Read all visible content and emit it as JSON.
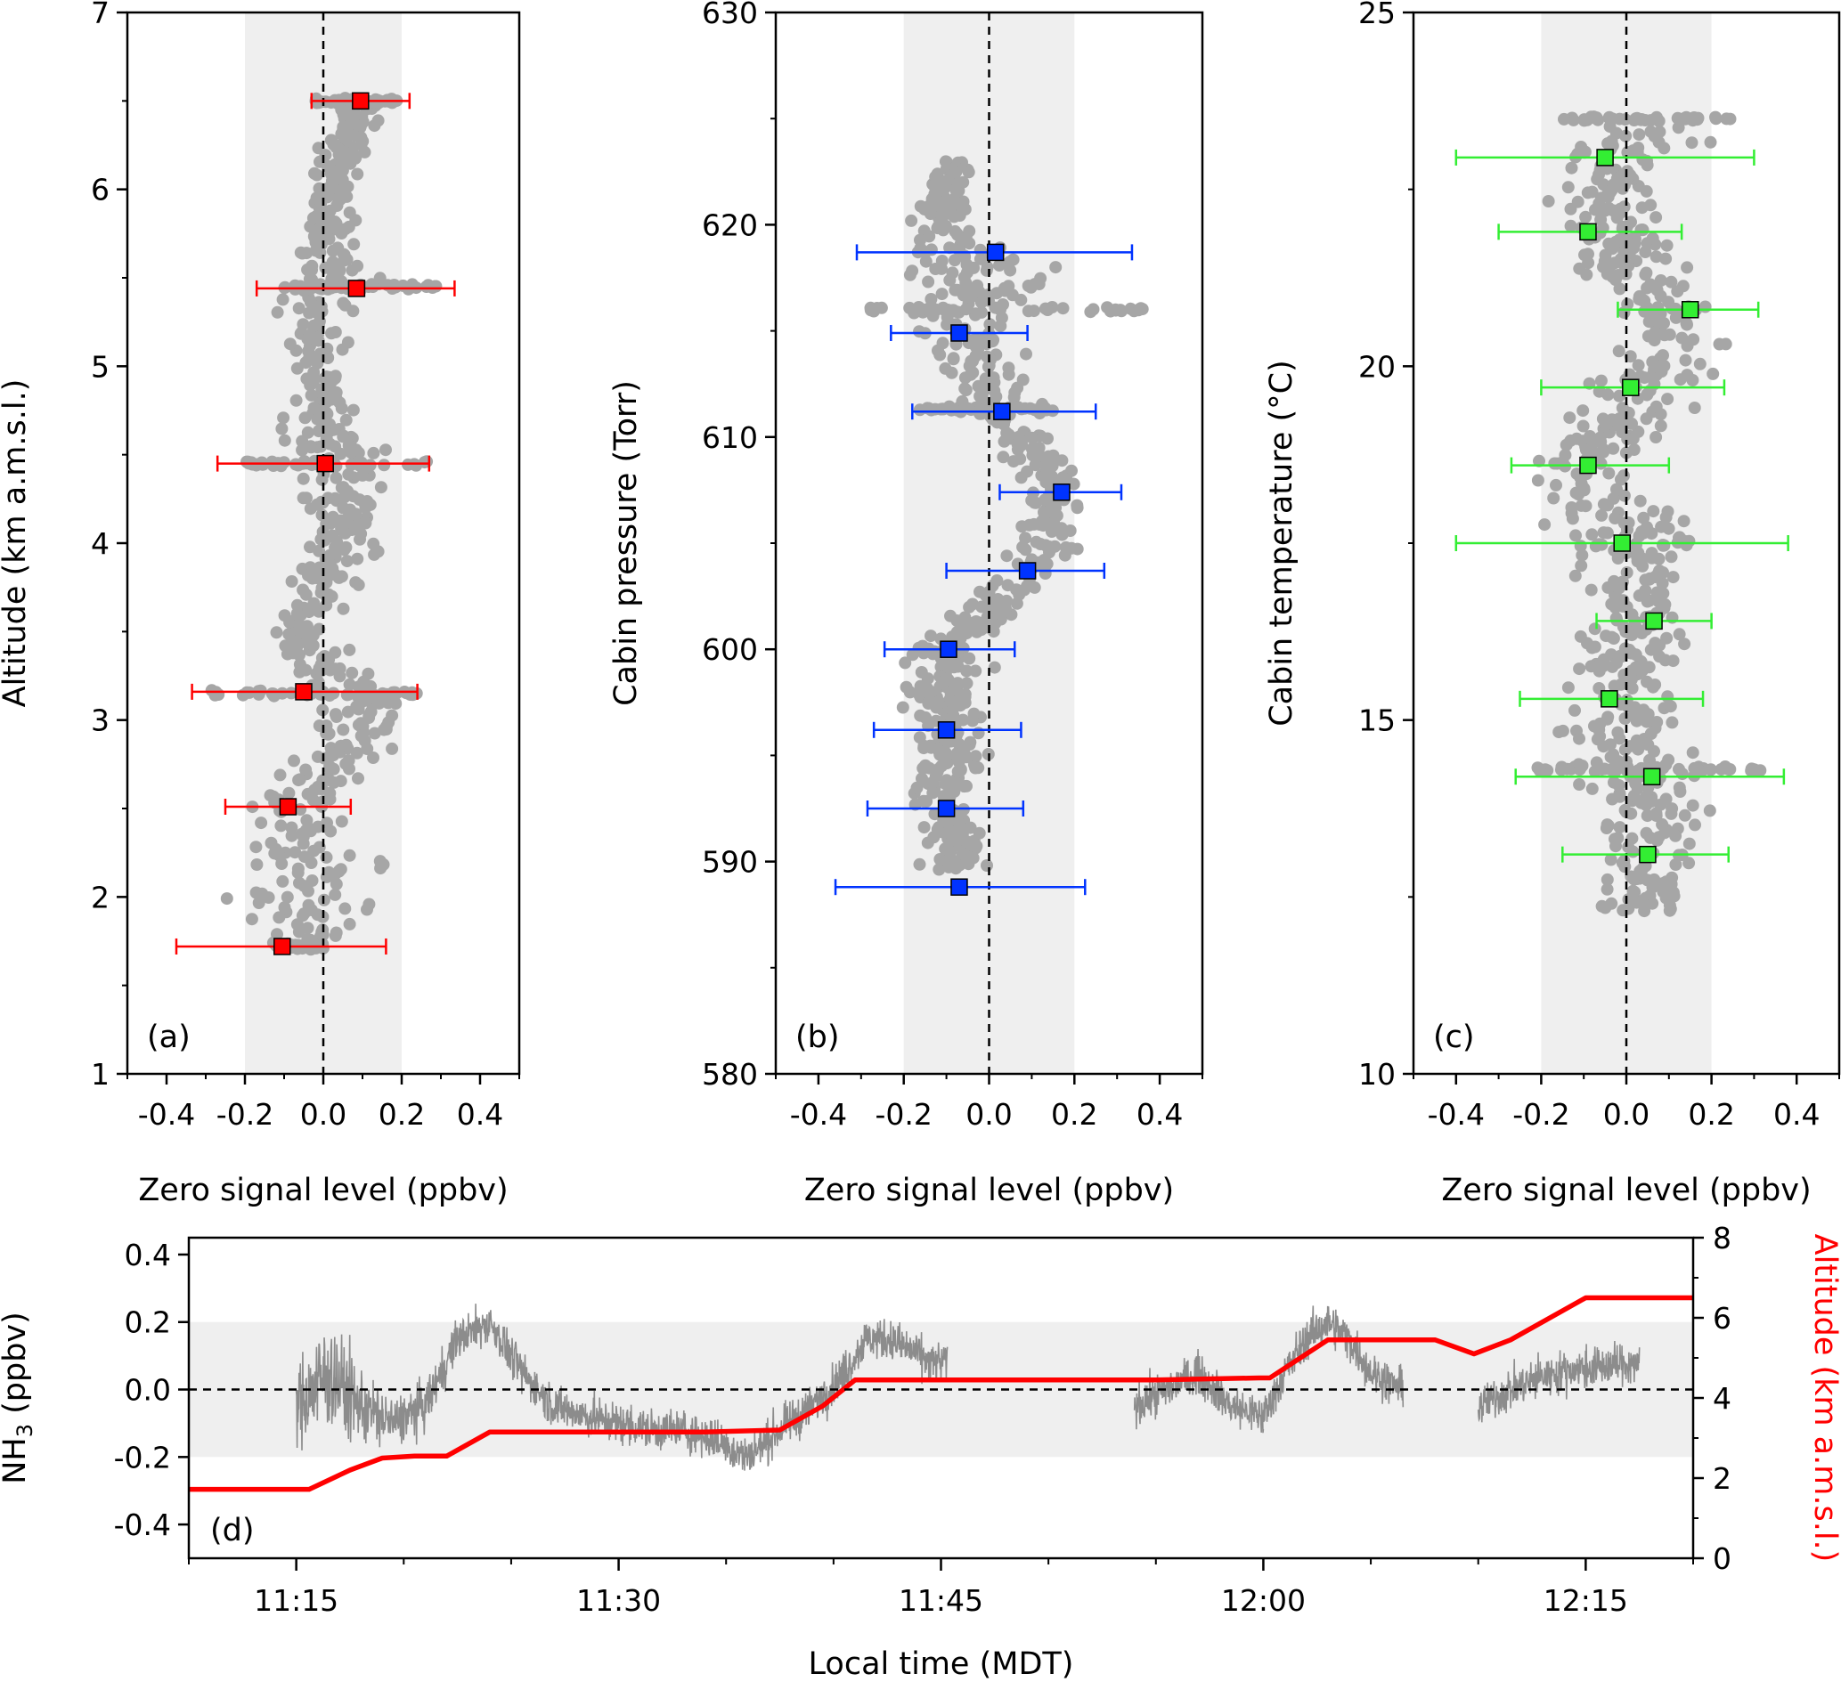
{
  "chart_data": [
    {
      "type": "scatter",
      "panel_label": "(a)",
      "xlabel": "Zero signal level (ppbv)",
      "ylabel": "Altitude (km a.m.s.l.)",
      "xlim": [
        -0.5,
        0.5
      ],
      "ylim": [
        1,
        7
      ],
      "xticks": [
        -0.4,
        -0.2,
        0.0,
        0.2,
        0.4
      ],
      "xtick_labels": [
        "-0.4",
        "-0.2",
        "0.0",
        "0.2",
        "0.4"
      ],
      "yticks": [
        1,
        2,
        3,
        4,
        5,
        6,
        7
      ],
      "ytick_labels": [
        "1",
        "2",
        "3",
        "4",
        "5",
        "6",
        "7"
      ],
      "shaded_band": [
        -0.2,
        0.2
      ],
      "zero_line": 0,
      "marker_color": "#ff0000",
      "scatter_color": "#a6a6a6",
      "scatter_trend": [
        {
          "y": 1.72,
          "x": -0.06,
          "spread": 0.05
        },
        {
          "y": 2.0,
          "x": 0.0,
          "spread": 0.2
        },
        {
          "y": 2.5,
          "x": -0.1,
          "spread": 0.1
        },
        {
          "y": 3.0,
          "x": 0.12,
          "spread": 0.09
        },
        {
          "y": 3.5,
          "x": -0.07,
          "spread": 0.06
        },
        {
          "y": 4.0,
          "x": 0.05,
          "spread": 0.08
        },
        {
          "y": 4.45,
          "x": 0.04,
          "spread": 0.12
        },
        {
          "y": 5.0,
          "x": -0.03,
          "spread": 0.06
        },
        {
          "y": 5.45,
          "x": 0.02,
          "spread": 0.1
        },
        {
          "y": 6.0,
          "x": 0.03,
          "spread": 0.05
        },
        {
          "y": 6.5,
          "x": 0.09,
          "spread": 0.05
        }
      ],
      "bands": [
        {
          "y": 1.72,
          "xmin": -0.12,
          "xmax": 0.0
        },
        {
          "y": 3.15,
          "xmin": -0.3,
          "xmax": 0.25
        },
        {
          "y": 4.45,
          "xmin": -0.22,
          "xmax": 0.27
        },
        {
          "y": 5.45,
          "xmin": -0.1,
          "xmax": 0.3
        },
        {
          "y": 6.5,
          "xmin": -0.02,
          "xmax": 0.2
        }
      ],
      "means": [
        {
          "y": 6.5,
          "x": 0.095,
          "err_lo": -0.03,
          "err_hi": 0.22
        },
        {
          "y": 5.44,
          "x": 0.085,
          "err_lo": -0.17,
          "err_hi": 0.335
        },
        {
          "y": 4.45,
          "x": 0.005,
          "err_lo": -0.27,
          "err_hi": 0.27
        },
        {
          "y": 3.16,
          "x": -0.05,
          "err_lo": -0.335,
          "err_hi": 0.24
        },
        {
          "y": 2.51,
          "x": -0.09,
          "err_lo": -0.25,
          "err_hi": 0.07
        },
        {
          "y": 1.72,
          "x": -0.105,
          "err_lo": -0.375,
          "err_hi": 0.16
        }
      ]
    },
    {
      "type": "scatter",
      "panel_label": "(b)",
      "xlabel": "Zero signal level (ppbv)",
      "ylabel": "Cabin pressure (Torr)",
      "xlim": [
        -0.5,
        0.5
      ],
      "ylim": [
        580,
        630
      ],
      "xticks": [
        -0.4,
        -0.2,
        0.0,
        0.2,
        0.4
      ],
      "xtick_labels": [
        "-0.4",
        "-0.2",
        "0.0",
        "0.2",
        "0.4"
      ],
      "yticks": [
        580,
        590,
        600,
        610,
        620,
        630
      ],
      "ytick_labels": [
        "580",
        "590",
        "600",
        "610",
        "620",
        "630"
      ],
      "shaded_band": [
        -0.2,
        0.2
      ],
      "zero_line": 0,
      "marker_color": "#0033ff",
      "scatter_color": "#a6a6a6",
      "scatter_trend": [
        {
          "y": 589.5,
          "x": -0.08,
          "spread": 0.06
        },
        {
          "y": 592.5,
          "x": -0.1,
          "spread": 0.07
        },
        {
          "y": 596.0,
          "x": -0.1,
          "spread": 0.07
        },
        {
          "y": 600.0,
          "x": -0.1,
          "spread": 0.07
        },
        {
          "y": 603.5,
          "x": 0.1,
          "spread": 0.08
        },
        {
          "y": 607.5,
          "x": 0.17,
          "spread": 0.06
        },
        {
          "y": 611.0,
          "x": 0.03,
          "spread": 0.08
        },
        {
          "y": 615.0,
          "x": -0.06,
          "spread": 0.08
        },
        {
          "y": 617.5,
          "x": 0.0,
          "spread": 0.15
        },
        {
          "y": 620.0,
          "x": -0.12,
          "spread": 0.06
        },
        {
          "y": 623.0,
          "x": -0.08,
          "spread": 0.04
        }
      ],
      "bands": [
        {
          "y": 616.0,
          "xmin": -0.3,
          "xmax": 0.36
        },
        {
          "y": 611.3,
          "xmin": -0.18,
          "xmax": 0.15
        }
      ],
      "means": [
        {
          "y": 618.7,
          "x": 0.015,
          "err_lo": -0.31,
          "err_hi": 0.335
        },
        {
          "y": 614.9,
          "x": -0.07,
          "err_lo": -0.23,
          "err_hi": 0.09
        },
        {
          "y": 611.2,
          "x": 0.03,
          "err_lo": -0.18,
          "err_hi": 0.25
        },
        {
          "y": 607.4,
          "x": 0.17,
          "err_lo": 0.025,
          "err_hi": 0.31
        },
        {
          "y": 603.7,
          "x": 0.09,
          "err_lo": -0.1,
          "err_hi": 0.27
        },
        {
          "y": 600.0,
          "x": -0.095,
          "err_lo": -0.245,
          "err_hi": 0.06
        },
        {
          "y": 596.2,
          "x": -0.1,
          "err_lo": -0.27,
          "err_hi": 0.075
        },
        {
          "y": 592.5,
          "x": -0.1,
          "err_lo": -0.285,
          "err_hi": 0.08
        },
        {
          "y": 588.8,
          "x": -0.07,
          "err_lo": -0.36,
          "err_hi": 0.225
        }
      ]
    },
    {
      "type": "scatter",
      "panel_label": "(c)",
      "xlabel": "Zero signal level (ppbv)",
      "ylabel": "Cabin temperature (°C)",
      "xlim": [
        -0.5,
        0.5
      ],
      "ylim": [
        10,
        25
      ],
      "xticks": [
        -0.4,
        -0.2,
        0.0,
        0.2,
        0.4
      ],
      "xtick_labels": [
        "-0.4",
        "-0.2",
        "0.0",
        "0.2",
        "0.4"
      ],
      "yticks": [
        10,
        15,
        20,
        25
      ],
      "ytick_labels": [
        "10",
        "15",
        "20",
        "25"
      ],
      "shaded_band": [
        -0.2,
        0.2
      ],
      "zero_line": 0,
      "marker_color": "#33ee33",
      "scatter_color": "#a6a6a6",
      "scatter_trend": [
        {
          "y": 12.3,
          "x": 0.05,
          "spread": 0.1
        },
        {
          "y": 13.5,
          "x": 0.05,
          "spread": 0.12
        },
        {
          "y": 14.5,
          "x": 0.02,
          "spread": 0.15
        },
        {
          "y": 15.5,
          "x": -0.02,
          "spread": 0.12
        },
        {
          "y": 16.5,
          "x": 0.05,
          "spread": 0.08
        },
        {
          "y": 17.5,
          "x": 0.0,
          "spread": 0.15
        },
        {
          "y": 18.5,
          "x": -0.1,
          "spread": 0.1
        },
        {
          "y": 19.5,
          "x": 0.02,
          "spread": 0.1
        },
        {
          "y": 20.5,
          "x": 0.12,
          "spread": 0.08
        },
        {
          "y": 21.5,
          "x": 0.0,
          "spread": 0.12
        },
        {
          "y": 22.5,
          "x": -0.05,
          "spread": 0.1
        },
        {
          "y": 23.4,
          "x": 0.05,
          "spread": 0.15
        }
      ],
      "bands": [
        {
          "y": 23.5,
          "xmin": -0.15,
          "xmax": 0.28
        },
        {
          "y": 14.3,
          "xmin": -0.22,
          "xmax": 0.35
        }
      ],
      "means": [
        {
          "y": 22.95,
          "x": -0.05,
          "err_lo": -0.4,
          "err_hi": 0.3
        },
        {
          "y": 21.9,
          "x": -0.09,
          "err_lo": -0.3,
          "err_hi": 0.13
        },
        {
          "y": 20.8,
          "x": 0.15,
          "err_lo": -0.02,
          "err_hi": 0.31
        },
        {
          "y": 19.7,
          "x": 0.01,
          "err_lo": -0.2,
          "err_hi": 0.23
        },
        {
          "y": 18.6,
          "x": -0.09,
          "err_lo": -0.27,
          "err_hi": 0.1
        },
        {
          "y": 17.5,
          "x": -0.01,
          "err_lo": -0.4,
          "err_hi": 0.38
        },
        {
          "y": 16.4,
          "x": 0.065,
          "err_lo": -0.07,
          "err_hi": 0.2
        },
        {
          "y": 15.3,
          "x": -0.04,
          "err_lo": -0.25,
          "err_hi": 0.18
        },
        {
          "y": 14.2,
          "x": 0.06,
          "err_lo": -0.26,
          "err_hi": 0.37
        },
        {
          "y": 13.1,
          "x": 0.05,
          "err_lo": -0.15,
          "err_hi": 0.24
        }
      ]
    },
    {
      "type": "line",
      "panel_label": "(d)",
      "xlabel": "Local time (MDT)",
      "ylabel": "NH3 (ppbv)",
      "ylabel_base": "NH",
      "ylabel_sub": "3",
      "ylabel_rest": " (ppbv)",
      "y2label": "Altitude (km a.m.s.l.)",
      "xlim_minutes": [
        670,
        740
      ],
      "xticks_minutes": [
        675,
        690,
        705,
        720,
        735
      ],
      "xtick_labels": [
        "11:15",
        "11:30",
        "11:45",
        "12:00",
        "12:15"
      ],
      "ylim": [
        -0.5,
        0.45
      ],
      "yticks": [
        -0.4,
        -0.2,
        0.0,
        0.2,
        0.4
      ],
      "ytick_labels": [
        "-0.4",
        "-0.2",
        "0.0",
        "0.2",
        "0.4"
      ],
      "y2lim": [
        0,
        8
      ],
      "y2ticks": [
        0,
        2,
        4,
        6,
        8
      ],
      "y2tick_labels": [
        "0",
        "2",
        "4",
        "6",
        "8"
      ],
      "shaded_band": [
        -0.2,
        0.2
      ],
      "zero_line": 0,
      "series": [
        {
          "name": "NH3",
          "color": "#8c8c8c",
          "axis": "left",
          "segments": [
            {
              "x": [
                675.0,
                676.5,
                678.0,
                679.5,
                681.0,
                682.5,
                684.0,
                685.5,
                687.0,
                688.5,
                690.0,
                691.5,
                693.0,
                694.5,
                696.0,
                697.5,
                699.0,
                700.5,
                701.5,
                702.5,
                703.5,
                704.5,
                705.3
              ],
              "y": [
                -0.05,
                0.05,
                -0.05,
                -0.1,
                -0.05,
                0.15,
                0.2,
                0.05,
                -0.05,
                -0.08,
                -0.1,
                -0.12,
                -0.12,
                -0.15,
                -0.2,
                -0.12,
                -0.05,
                0.05,
                0.15,
                0.15,
                0.12,
                0.08,
                0.08
              ],
              "noise": [
                0.1,
                0.14,
                0.09,
                0.06,
                0.06,
                0.05,
                0.05,
                0.05,
                0.05,
                0.05,
                0.05,
                0.05,
                0.05,
                0.05,
                0.05,
                0.05,
                0.05,
                0.05,
                0.05,
                0.05,
                0.05,
                0.05,
                0.05
              ]
            },
            {
              "x": [
                714.0,
                715.5,
                717.0,
                718.5,
                720.0
              ],
              "y": [
                -0.05,
                0.0,
                0.05,
                -0.05,
                -0.08
              ],
              "noise": [
                0.05,
                0.05,
                0.05,
                0.05,
                0.05
              ]
            },
            {
              "x": [
                720.0,
                721.0,
                722.0,
                723.0,
                724.0,
                725.0,
                726.5
              ],
              "y": [
                -0.08,
                0.05,
                0.15,
                0.2,
                0.15,
                0.05,
                0.0
              ],
              "noise": [
                0.05,
                0.05,
                0.05,
                0.05,
                0.05,
                0.05,
                0.05
              ]
            },
            {
              "x": [
                730.0,
                731.5,
                733.0,
                734.5,
                736.0,
                737.5
              ],
              "y": [
                -0.05,
                0.0,
                0.04,
                0.06,
                0.07,
                0.08
              ],
              "noise": [
                0.05,
                0.05,
                0.05,
                0.05,
                0.05,
                0.05
              ]
            }
          ]
        },
        {
          "name": "Altitude",
          "color": "#ff0000",
          "axis": "right",
          "x": [
            670,
            675.6,
            677.5,
            679.0,
            680.5,
            682.0,
            684.0,
            685.0,
            690.0,
            694.0,
            697.5,
            699.5,
            701.0,
            709.0,
            715.0,
            719.8,
            720.3,
            723.0,
            728.0,
            729.8,
            731.5,
            735.0,
            740.0
          ],
          "y": [
            1.72,
            1.72,
            2.2,
            2.5,
            2.55,
            2.55,
            3.15,
            3.15,
            3.15,
            3.15,
            3.2,
            3.8,
            4.45,
            4.45,
            4.45,
            4.5,
            4.5,
            5.45,
            5.45,
            5.1,
            5.45,
            6.5,
            6.5
          ]
        }
      ]
    }
  ]
}
